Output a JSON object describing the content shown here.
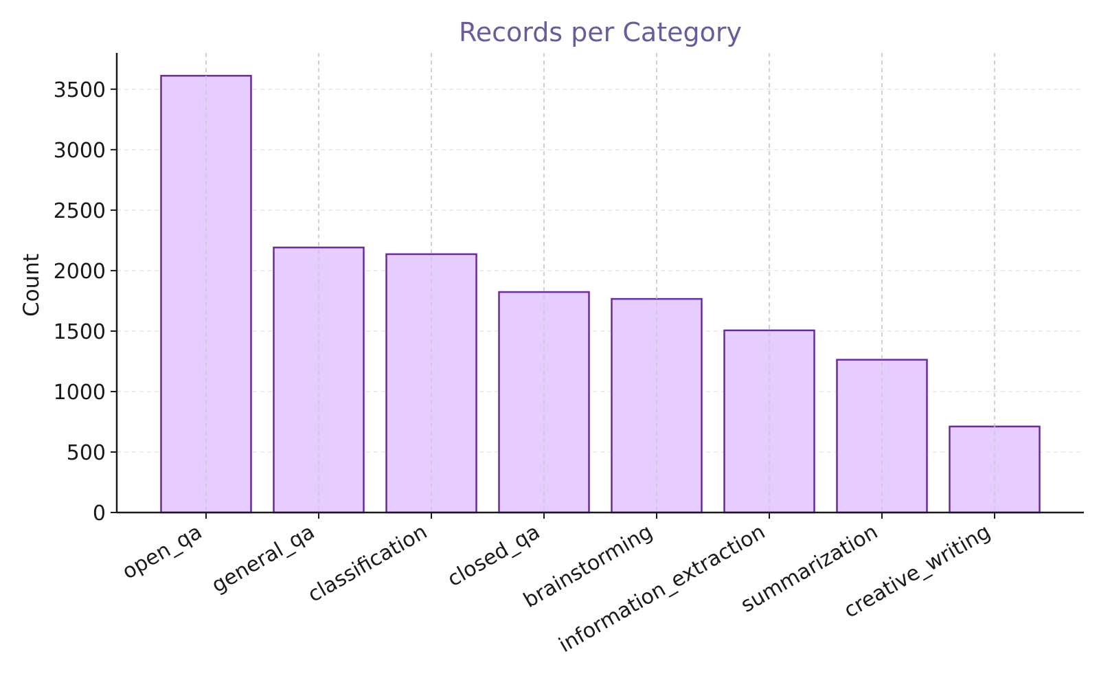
{
  "chart_data": {
    "type": "bar",
    "title": "Records per Category",
    "xlabel": "",
    "ylabel": "Count",
    "categories": [
      "open_qa",
      "general_qa",
      "classification",
      "closed_qa",
      "brainstorming",
      "information_extraction",
      "summarization",
      "creative_writing"
    ],
    "values": [
      3611,
      2191,
      2136,
      1823,
      1766,
      1506,
      1263,
      711
    ],
    "ylim": [
      0,
      3800
    ],
    "yticks": [
      0,
      500,
      1000,
      1500,
      2000,
      2500,
      3000,
      3500
    ],
    "grid": "dashed",
    "legend": "none",
    "colors": {
      "bar_fill": "#e6ccff",
      "bar_edge": "#6a2aa6",
      "title": "#6a5a9e",
      "axis": "#1a1a1a",
      "grid_y": "#e8e8e8",
      "grid_x": "#c8c8c8"
    }
  }
}
